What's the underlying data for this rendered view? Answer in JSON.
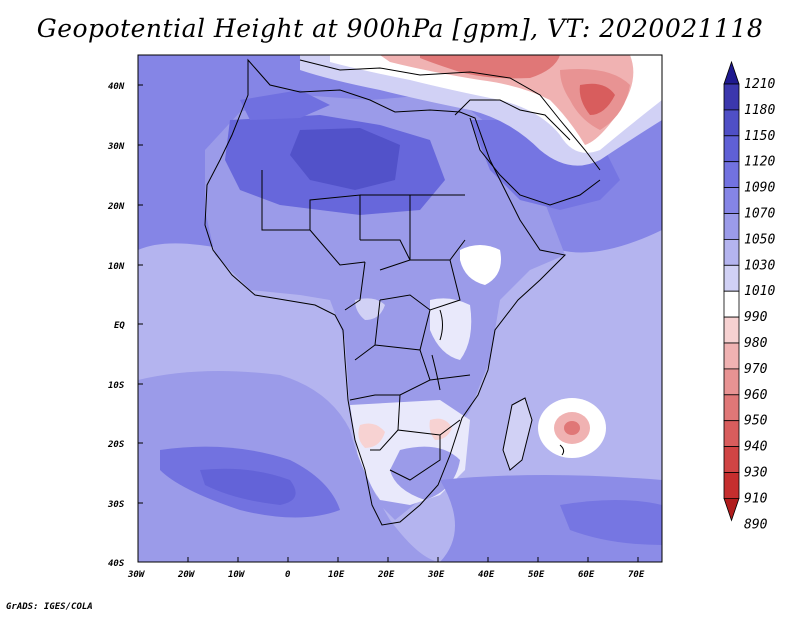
{
  "title": "Geopotential Height at 900hPa [gpm], VT: 2020021118",
  "credit": "GrADS: IGES/COLA",
  "x_ticks": [
    "30W",
    "20W",
    "10W",
    "0",
    "10E",
    "20E",
    "30E",
    "40E",
    "50E",
    "60E",
    "70E"
  ],
  "y_ticks": [
    "40N",
    "30N",
    "20N",
    "10N",
    "EQ",
    "10S",
    "20S",
    "30S",
    "40S"
  ],
  "colorbar": {
    "labels": [
      "1210",
      "1180",
      "1150",
      "1120",
      "1090",
      "1070",
      "1050",
      "1030",
      "1010",
      "990",
      "980",
      "970",
      "960",
      "950",
      "940",
      "930",
      "910",
      "890"
    ],
    "colors": [
      "#1f1a8f",
      "#3b37ad",
      "#4f4fc6",
      "#5f60d6",
      "#7272e0",
      "#8585e6",
      "#9b9be9",
      "#b4b4ef",
      "#d1d1f5",
      "#ffffff",
      "#f7d2d2",
      "#f0b2b2",
      "#e89393",
      "#e07777",
      "#d85d5d",
      "#d04444",
      "#c52e2e",
      "#b01c1c"
    ]
  },
  "colors": {
    "ocean_base": "#b4b4ef",
    "land_base": "#7b7be2",
    "sahara": "#4f4fc6",
    "high_north": "#e07777",
    "cyclone": "#e89393"
  }
}
